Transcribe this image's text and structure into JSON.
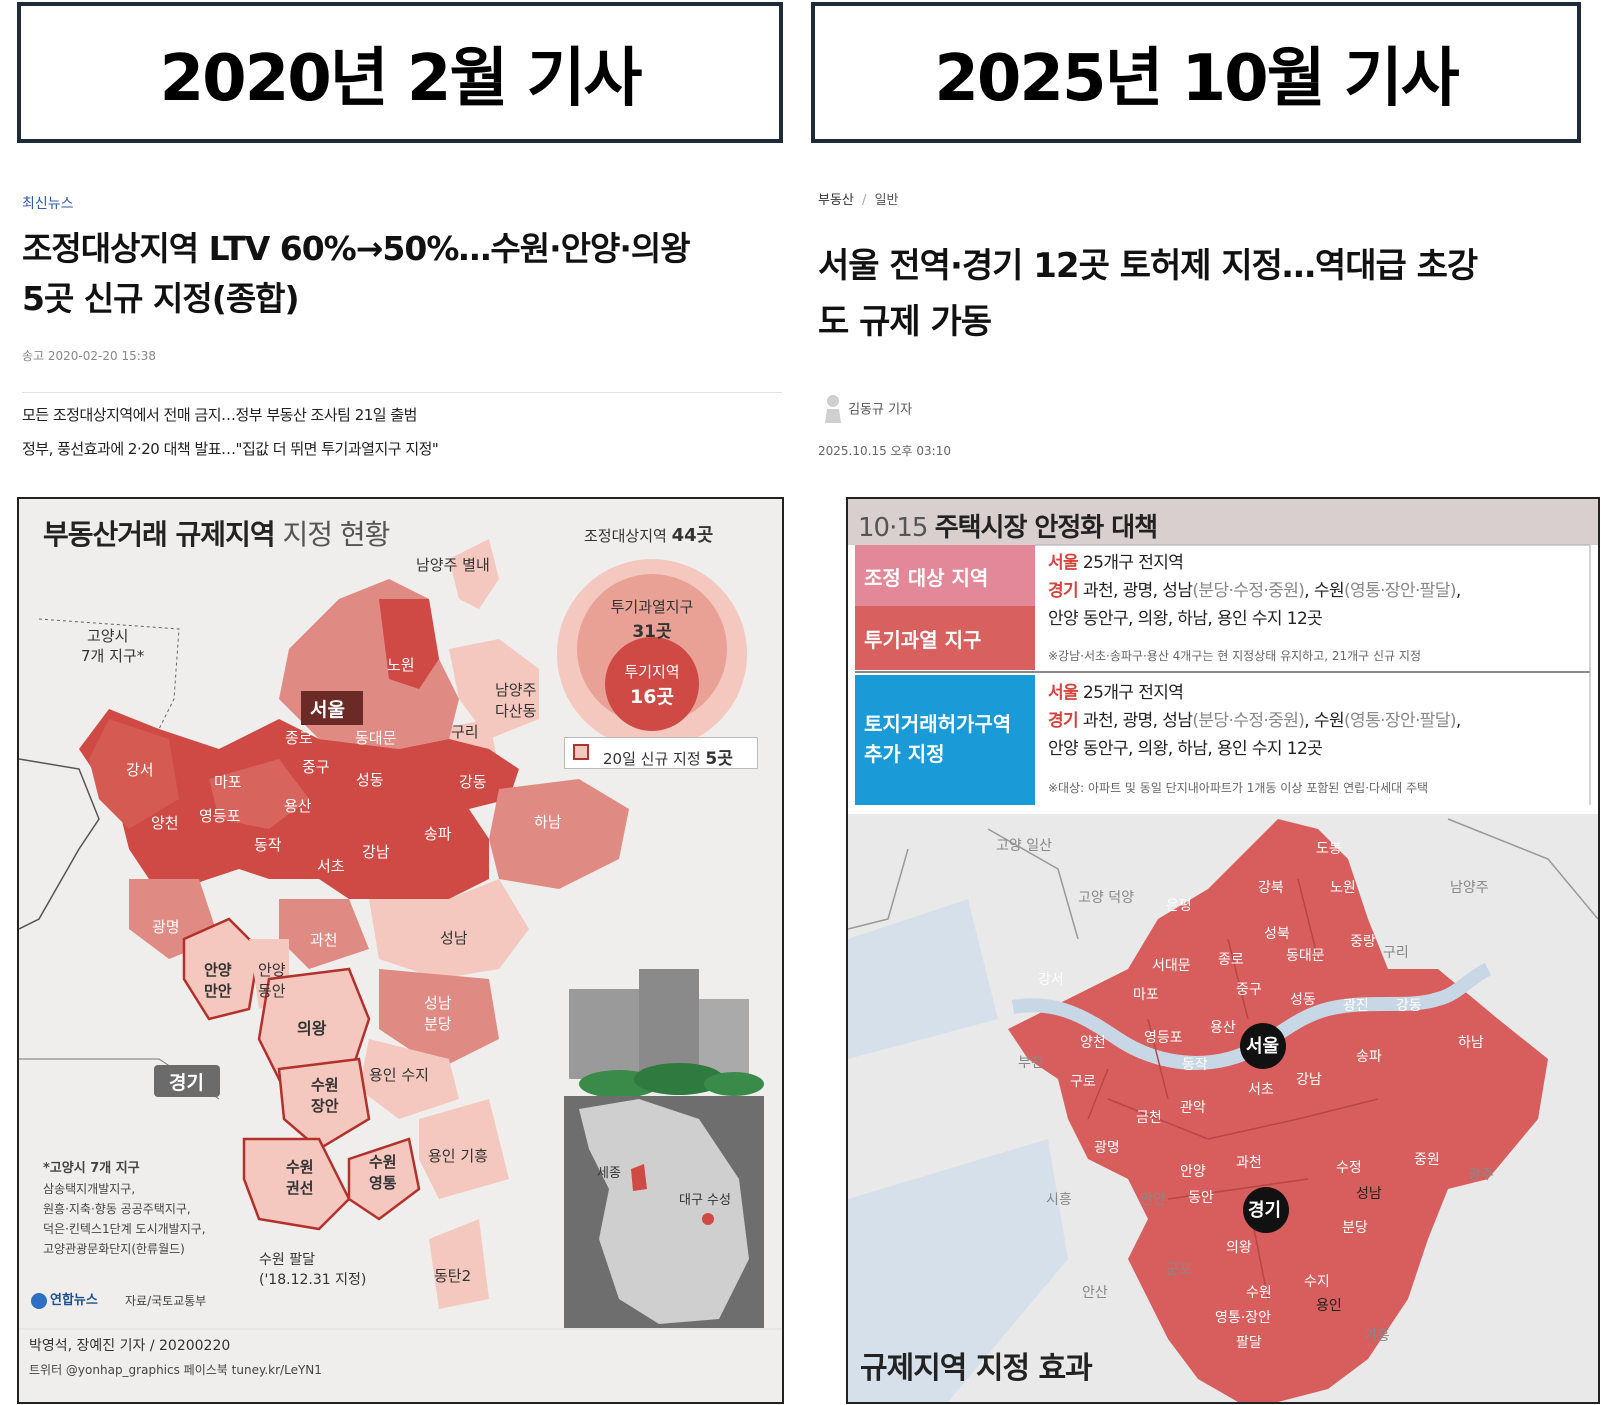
{
  "left": {
    "header": "2020년 2월 기사",
    "category": "최신뉴스",
    "headline_line1": "조정대상지역 LTV 60%→50%…수원·안양·의왕",
    "headline_line2": "5곳 신규 지정(종합)",
    "sent_time": "송고 2020-02-20 15:38",
    "subheads": [
      "모든 조정대상지역에서 전매 금지…정부 부동산 조사팀 21일 출범",
      "정부, 풍선효과에 2·20 대책 발표…\"집값 더 뛰면 투기과열지구 지정\""
    ],
    "map": {
      "title_bold": "부동산거래 규제지역",
      "title_light": "지정 현황",
      "legend_total": "조정대상지역",
      "legend_total_num": "44곳",
      "legend_mid": "투기과열지구",
      "legend_mid_num": "31곳",
      "legend_inner": "투기지역",
      "legend_inner_num": "16곳",
      "new_label": "20일 신규 지정",
      "new_num": "5곳",
      "seoul": "서울",
      "gyeonggi": "경기",
      "goyang": "고양시",
      "goyang2": "7개 지구*",
      "namyang_byeollae": "남양주 별내",
      "namyang_dasan1": "남양주",
      "namyang_dasan2": "다산동",
      "districts": [
        "노원",
        "종로",
        "동대문",
        "구리",
        "강서",
        "마포",
        "중구",
        "성동",
        "강동",
        "양천",
        "영등포",
        "용산",
        "동작",
        "강남",
        "송파",
        "하남",
        "서초",
        "광명",
        "과천",
        "성남"
      ],
      "anyang_manan1": "안양",
      "anyang_manan2": "만안",
      "anyang_dongan1": "안양",
      "anyang_dongan2": "동안",
      "seongnam_bundang1": "성남",
      "seongnam_bundang2": "분당",
      "uiwang": "의왕",
      "yongin_suji": "용인 수지",
      "suwon_jangan1": "수원",
      "suwon_jangan2": "장안",
      "suwon_gwonseon1": "수원",
      "suwon_gwonseon2": "권선",
      "suwon_yeongtong1": "수원",
      "suwon_yeongtong2": "영통",
      "yongin_giheung": "용인 기흥",
      "suwon_paldal1": "수원 팔달",
      "suwon_paldal2": "('18.12.31 지정)",
      "dongtan": "동탄2",
      "footnote": [
        "*고양시 7개 지구",
        "삼송택지개발지구,",
        "원흥·지축·향동 공공주택지구,",
        "덕은·킨텍스1단계 도시개발지구,",
        "고양관광문화단지(한류월드)"
      ],
      "sejong": "세종",
      "daegu": "대구 수성",
      "brand": "연합뉴스",
      "source": "자료/국토교통부",
      "credit": "박영석, 장예진 기자 / 20200220",
      "social": "트위터 @yonhap_graphics  페이스북 tuney.kr/LeYN1"
    }
  },
  "right": {
    "header": "2025년 10월 기사",
    "category": "부동산",
    "category_sep": "/",
    "category_sub": "일반",
    "headline_line1": "서울 전역·경기 12곳 토허제 지정…역대급 초강",
    "headline_line2": "도 규제 가동",
    "reporter": "김동규 기자",
    "date": "2025.10.15 오후 03:10",
    "infographic": {
      "title_num": "10·15",
      "title": "주택시장 안정화 대책",
      "row1_label": "조정 대상 지역",
      "row2_label": "투기과열 지구",
      "row3_label1": "토지거래허가구역",
      "row3_label2": "추가 지정",
      "seoul": "서울",
      "seoul_text": "25개구 전지역",
      "gyeonggi": "경기",
      "gg_a": "과천, 광명, 성남",
      "gg_b": "(분당·수정·중원)",
      "gg_c": ", 수원",
      "gg_d": "(영통·장안·팔달)",
      "gg_e": ",",
      "gg_line2": "안양 동안구, 의왕, 하남, 용인 수지 12곳",
      "note1": "※강남·서초·송파구·용산 4개구는 현 지정상태 유지하고,  21개구  신규 지정",
      "note2": "※대상: 아파트 및 동일 단지내아파트가 1개동 이상 포함된 연립·다세대 주택",
      "map_title": "규제지역 지정 효과",
      "seoul_badge": "서울",
      "gyeonggi_badge": "경기",
      "gray_labels": [
        "고양 일산",
        "고양 덕양",
        "남양주",
        "구리",
        "부천",
        "시흥",
        "만안",
        "군포",
        "안산",
        "광주",
        "기흥"
      ],
      "districts": [
        "도봉",
        "강북",
        "노원",
        "은평",
        "성북",
        "중랑",
        "서대문",
        "종로",
        "동대문",
        "강서",
        "마포",
        "중구",
        "성동",
        "광진",
        "강동",
        "하남",
        "양천",
        "영등포",
        "용산",
        "구로",
        "동작",
        "송파",
        "금천",
        "관악",
        "서초",
        "강남",
        "광명",
        "과천",
        "수정",
        "중원",
        "안양",
        "동안",
        "성남",
        "분당",
        "의왕",
        "수원",
        "수지",
        "영통·장안",
        "팔달",
        "용인"
      ]
    }
  },
  "colors": {
    "header_border": "#1d2b3a",
    "left_category": "#2e5dab",
    "deep_red": "#cf4a45",
    "mid_red": "#e08a84",
    "light_pink": "#f4c8bf",
    "right_pink": "#e28898",
    "right_red": "#d8605e",
    "right_blue": "#1a9ad6",
    "map_red": "#d85e5e"
  }
}
